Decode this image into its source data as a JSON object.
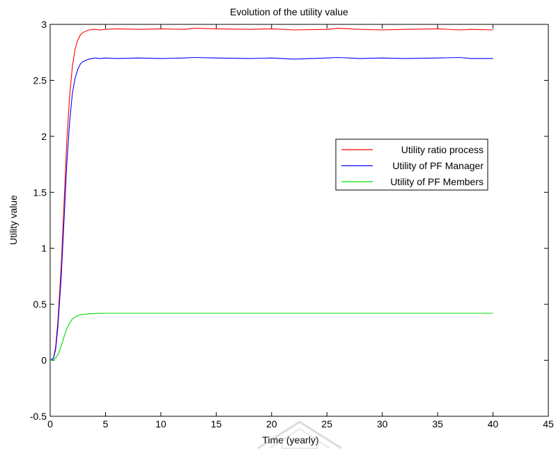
{
  "chart_data": {
    "type": "line",
    "title": "Evolution of the utility value",
    "xlabel": "Time (yearly)",
    "ylabel": "Utility value",
    "xlim": [
      0,
      45
    ],
    "ylim": [
      -0.5,
      3
    ],
    "xticks": [
      0,
      5,
      10,
      15,
      20,
      25,
      30,
      35,
      40,
      45
    ],
    "yticks": [
      -0.5,
      0,
      0.5,
      1,
      1.5,
      2,
      2.5,
      3
    ],
    "grid": false,
    "legend_position": "right",
    "series": [
      {
        "name": "Utility ratio process",
        "color": "#ff0000",
        "x": [
          0,
          0.3,
          0.5,
          0.7,
          1.0,
          1.25,
          1.5,
          1.75,
          2.0,
          2.25,
          2.5,
          2.75,
          3.0,
          3.5,
          4.0,
          4.5,
          5,
          6,
          8,
          10,
          12,
          13,
          15,
          18,
          20,
          22,
          25,
          26,
          28,
          30,
          32,
          35,
          37,
          38,
          40
        ],
        "y": [
          0,
          0.02,
          0.12,
          0.35,
          0.85,
          1.4,
          1.95,
          2.35,
          2.62,
          2.78,
          2.86,
          2.91,
          2.93,
          2.95,
          2.955,
          2.95,
          2.955,
          2.96,
          2.955,
          2.96,
          2.955,
          2.965,
          2.96,
          2.955,
          2.96,
          2.95,
          2.955,
          2.965,
          2.955,
          2.95,
          2.955,
          2.96,
          2.95,
          2.955,
          2.95
        ]
      },
      {
        "name": "Utility of PF Manager",
        "color": "#0000ff",
        "x": [
          0,
          0.3,
          0.5,
          0.7,
          1.0,
          1.25,
          1.5,
          1.75,
          2.0,
          2.25,
          2.5,
          2.75,
          3.0,
          3.5,
          4.0,
          4.5,
          5,
          6,
          8,
          10,
          12,
          13,
          15,
          18,
          20,
          22,
          25,
          26,
          28,
          30,
          32,
          35,
          37,
          38,
          40
        ],
        "y": [
          0,
          0.02,
          0.1,
          0.3,
          0.75,
          1.25,
          1.75,
          2.12,
          2.38,
          2.52,
          2.6,
          2.65,
          2.67,
          2.69,
          2.7,
          2.695,
          2.7,
          2.695,
          2.7,
          2.695,
          2.7,
          2.705,
          2.7,
          2.695,
          2.7,
          2.69,
          2.7,
          2.705,
          2.695,
          2.7,
          2.695,
          2.7,
          2.705,
          2.695,
          2.695
        ]
      },
      {
        "name": "Utility of PF Members",
        "color": "#00dd00",
        "x": [
          0,
          0.3,
          0.5,
          0.75,
          1.0,
          1.25,
          1.5,
          1.75,
          2.0,
          2.5,
          3.0,
          3.5,
          4.0,
          5,
          10,
          15,
          20,
          25,
          30,
          35,
          40
        ],
        "y": [
          0,
          0.005,
          0.02,
          0.06,
          0.13,
          0.21,
          0.28,
          0.33,
          0.37,
          0.4,
          0.41,
          0.415,
          0.418,
          0.42,
          0.42,
          0.42,
          0.42,
          0.42,
          0.42,
          0.42,
          0.42
        ]
      }
    ]
  }
}
